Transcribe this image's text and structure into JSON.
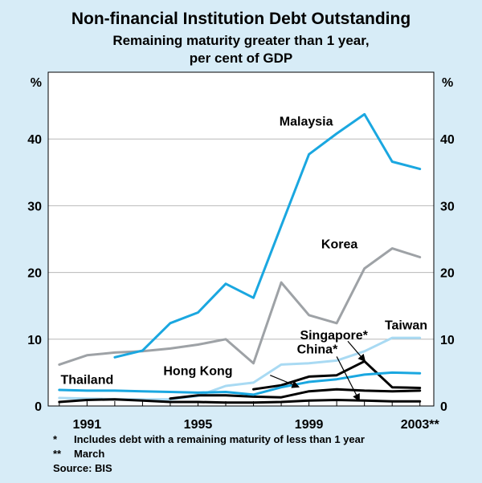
{
  "title": "Non-financial Institution Debt Outstanding",
  "subtitle_lines": [
    "Remaining maturity greater than 1 year,",
    "per cent of GDP"
  ],
  "footnotes": [
    {
      "symbol": "*",
      "text": "Includes debt with a remaining maturity of less than 1 year"
    },
    {
      "symbol": "**",
      "text": "March"
    }
  ],
  "source": "Source: BIS",
  "colors": {
    "background": "#d7ecf7",
    "plot_bg": "#ffffff",
    "malaysia": "#1aa7e0",
    "korea": "#9ea2a6",
    "taiwan": "#a9daf3",
    "singapore": "#000000",
    "china": "#000000",
    "hongkong": "#000000",
    "thailand": "#1aa7e0"
  },
  "chart_data": {
    "type": "line",
    "xlim": [
      1989.6,
      2003.5
    ],
    "ylim": [
      0,
      50
    ],
    "y_ticks": [
      0,
      10,
      20,
      30,
      40
    ],
    "x_ticks": [
      1991,
      1995,
      1999
    ],
    "x_tick_labels": [
      "1991",
      "1995",
      "1999"
    ],
    "x_end_label": "2003**",
    "y_unit_left": "%",
    "y_unit_right": "%",
    "grid": true,
    "series": [
      {
        "name": "Korea",
        "color_key": "korea",
        "x": [
          1990,
          1991,
          1992,
          1993,
          1994,
          1995,
          1996,
          1997,
          1998,
          1999,
          2000,
          2001,
          2002,
          2003
        ],
        "y": [
          6.2,
          7.6,
          8.0,
          8.2,
          8.6,
          9.2,
          10.0,
          6.4,
          18.5,
          13.6,
          12.4,
          20.6,
          23.6,
          22.3
        ]
      },
      {
        "name": "Malaysia",
        "color_key": "malaysia",
        "x": [
          1992,
          1993,
          1994,
          1995,
          1996,
          1997,
          1998,
          1999,
          2000,
          2001,
          2002,
          2003
        ],
        "y": [
          7.3,
          8.3,
          12.4,
          14.0,
          18.3,
          16.2,
          27.0,
          37.7,
          40.8,
          43.7,
          36.6,
          35.5
        ]
      },
      {
        "name": "Taiwan",
        "color_key": "taiwan",
        "x": [
          1990,
          1991,
          1992,
          1993,
          1994,
          1995,
          1996,
          1997,
          1998,
          1999,
          2000,
          2001,
          2002,
          2003
        ],
        "y": [
          1.2,
          1.1,
          1.0,
          1.0,
          1.0,
          1.5,
          3.0,
          3.5,
          6.2,
          6.4,
          6.8,
          8.2,
          10.2,
          10.2
        ]
      },
      {
        "name": "Singapore*",
        "color_key": "singapore",
        "x": [
          1997,
          1998,
          1999,
          2000,
          2001,
          2002,
          2003
        ],
        "y": [
          2.5,
          3.1,
          4.4,
          4.6,
          6.7,
          2.8,
          2.7
        ]
      },
      {
        "name": "China*",
        "color_key": "china",
        "x": [
          1990,
          1991,
          1992,
          1993,
          1994,
          1995,
          1996,
          1997,
          1998,
          1999,
          2000,
          2001,
          2002,
          2003
        ],
        "y": [
          0.6,
          0.9,
          1.0,
          0.8,
          0.6,
          0.6,
          0.5,
          0.5,
          0.6,
          0.8,
          0.9,
          0.8,
          0.7,
          0.7
        ]
      },
      {
        "name": "Hong Kong",
        "color_key": "hongkong",
        "x": [
          1994,
          1995,
          1996,
          1997,
          1998,
          1999,
          2000,
          2001,
          2002,
          2003
        ],
        "y": [
          1.1,
          1.6,
          1.6,
          1.4,
          1.3,
          2.2,
          2.5,
          2.3,
          2.2,
          2.3
        ]
      },
      {
        "name": "Thailand",
        "color_key": "thailand",
        "x": [
          1990,
          1991,
          1992,
          1993,
          1994,
          1995,
          1996,
          1997,
          1998,
          1999,
          2000,
          2001,
          2002,
          2003
        ],
        "y": [
          2.4,
          2.3,
          2.3,
          2.2,
          2.1,
          2.0,
          2.1,
          1.7,
          2.8,
          3.6,
          4.0,
          4.7,
          5.0,
          4.9
        ]
      }
    ],
    "labels": [
      {
        "series": "Malaysia",
        "text": "Malaysia",
        "x": 1998.9,
        "y": 42.0
      },
      {
        "series": "Korea",
        "text": "Korea",
        "x": 2000.1,
        "y": 23.6
      },
      {
        "series": "Taiwan",
        "text": "Taiwan",
        "x": 2002.5,
        "y": 11.5
      },
      {
        "series": "Singapore*",
        "text": "Singapore*",
        "x": 1999.9,
        "y": 10.0
      },
      {
        "series": "China*",
        "text": "China*",
        "x": 1999.3,
        "y": 7.9
      },
      {
        "series": "Hong Kong",
        "text": "Hong Kong",
        "x": 1995.0,
        "y": 4.6
      },
      {
        "series": "Thailand",
        "text": "Thailand",
        "x": 1991.0,
        "y": 3.3
      }
    ],
    "arrows": [
      {
        "from": [
          1997.6,
          4.6
        ],
        "to": [
          1998.6,
          2.9
        ]
      },
      {
        "from": [
          2000.4,
          9.7
        ],
        "to": [
          2001.0,
          6.8
        ]
      },
      {
        "from": [
          2000.0,
          7.4
        ],
        "to": [
          2000.8,
          0.9
        ]
      }
    ]
  }
}
